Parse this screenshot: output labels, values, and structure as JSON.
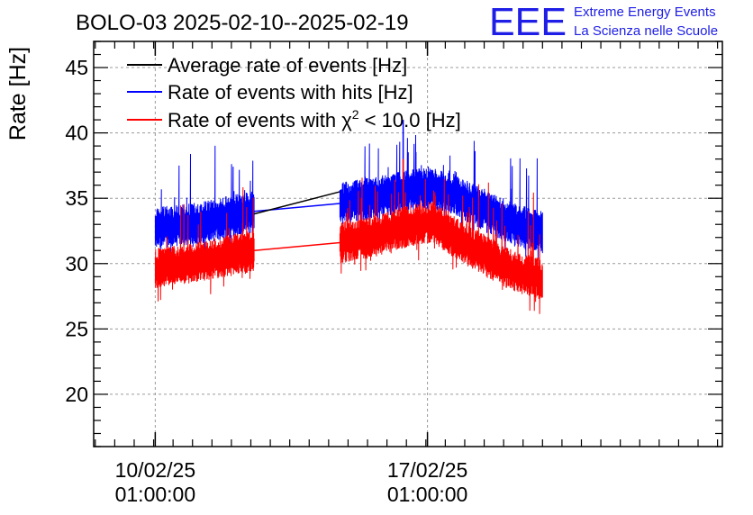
{
  "colors": {
    "background": "#ffffff",
    "axis": "#000000",
    "grid": "#9a9a9a",
    "logo": "#1e1ee6",
    "average": "#000000",
    "hits": "#0000ff",
    "chi2": "#ff0000"
  },
  "chart_data": {
    "type": "line",
    "title": "BOLO-03 2025-02-10--2025-02-19",
    "xlabel": "",
    "ylabel": "Rate [Hz]",
    "x_unit": "days",
    "xlim": [
      "2025-02-08 11:00",
      "2025-02-24 15:00"
    ],
    "ylim": [
      16,
      47
    ],
    "yticks": [
      20,
      25,
      30,
      35,
      40,
      45
    ],
    "xticks": [
      {
        "date": "2025-02-10 01:00",
        "line1": "10/02/25",
        "line2": "01:00:00"
      },
      {
        "date": "2025-02-17 01:00",
        "line1": "17/02/25",
        "line2": "01:00:00"
      }
    ],
    "grid": true,
    "legend_position": "top-left",
    "segments": [
      {
        "start": "2025-02-10 01:00",
        "end": "2025-02-12 14:00"
      },
      {
        "start": "2025-02-14 19:00",
        "end": "2025-02-20 00:00"
      }
    ],
    "series": [
      {
        "name": "Average rate of events [Hz]",
        "color": "#000000",
        "style": "line",
        "x": [
          "2025-02-12 14:00",
          "2025-02-14 19:00"
        ],
        "y": [
          33.8,
          35.5
        ]
      },
      {
        "name": "Rate of events with hits [Hz]",
        "color": "#0000ff",
        "style": "band",
        "x": [
          "2025-02-10 01:00",
          "2025-02-10 14:00",
          "2025-02-11 05:00",
          "2025-02-11 22:00",
          "2025-02-12 14:00",
          "2025-02-14 19:00",
          "2025-02-15 14:00",
          "2025-02-16 14:00",
          "2025-02-17 04:00",
          "2025-02-17 19:00",
          "2025-02-18 14:00",
          "2025-02-19 07:00",
          "2025-02-20 00:00"
        ],
        "mean": [
          32.7,
          32.9,
          33.1,
          33.6,
          34.0,
          34.6,
          35.0,
          35.6,
          35.8,
          35.2,
          34.0,
          33.0,
          32.4
        ],
        "low": [
          31.1,
          31.3,
          31.5,
          31.9,
          32.3,
          33.0,
          33.4,
          34.0,
          34.2,
          33.6,
          32.3,
          31.3,
          30.7
        ],
        "high": [
          34.3,
          34.5,
          34.7,
          35.2,
          35.6,
          36.2,
          36.6,
          37.2,
          37.4,
          36.8,
          35.6,
          34.6,
          34.0
        ],
        "spike_max": 41.0
      },
      {
        "name": "Rate of events with χ² < 10.0 [Hz]",
        "color": "#ff0000",
        "style": "band",
        "x": [
          "2025-02-10 01:00",
          "2025-02-10 14:00",
          "2025-02-11 05:00",
          "2025-02-11 22:00",
          "2025-02-12 14:00",
          "2025-02-14 19:00",
          "2025-02-15 14:00",
          "2025-02-16 14:00",
          "2025-02-17 04:00",
          "2025-02-17 19:00",
          "2025-02-18 14:00",
          "2025-02-19 07:00",
          "2025-02-20 00:00"
        ],
        "mean": [
          29.6,
          29.8,
          30.1,
          30.6,
          31.0,
          31.6,
          32.0,
          32.9,
          33.2,
          31.9,
          30.5,
          29.4,
          28.8
        ],
        "low": [
          28.1,
          28.3,
          28.6,
          29.0,
          29.4,
          30.0,
          30.4,
          31.3,
          31.6,
          30.3,
          28.9,
          27.8,
          27.2
        ],
        "high": [
          31.2,
          31.4,
          31.7,
          32.2,
          32.6,
          33.2,
          33.6,
          34.5,
          34.8,
          33.5,
          32.1,
          31.0,
          30.4
        ],
        "spike_max": 38.0
      }
    ],
    "legend": [
      {
        "label": "Average rate of events [Hz]",
        "color": "#000000"
      },
      {
        "label": "Rate of events with hits [Hz]",
        "color": "#0000ff"
      },
      {
        "label_pre": "Rate of events with ",
        "label_chi": "χ",
        "label_sup": "2",
        "label_post": " < 10.0 [Hz]",
        "color": "#ff0000"
      }
    ]
  },
  "logo": {
    "mark": "EEE",
    "line1": "Extreme Energy Events",
    "line2": "La Scienza nelle Scuole"
  }
}
